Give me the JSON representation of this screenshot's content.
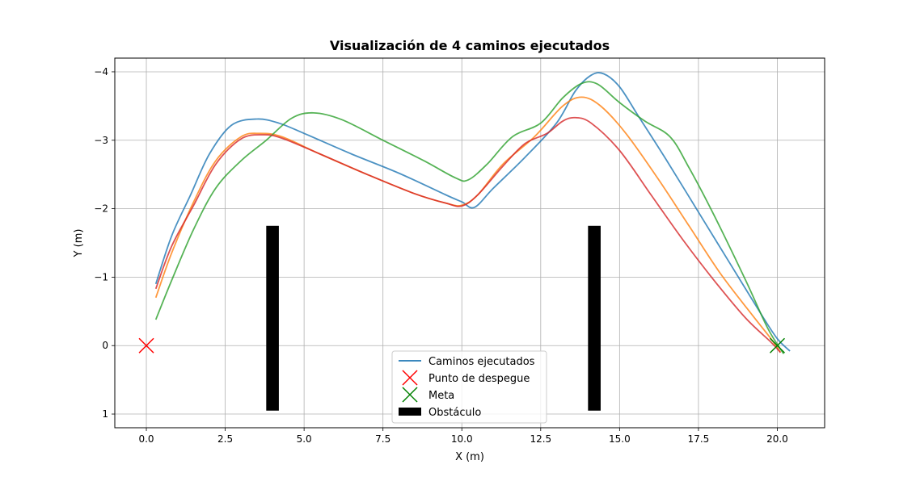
{
  "chart_data": {
    "type": "line",
    "title": "Visualización de 4 caminos ejecutados",
    "xlabel": "X (m)",
    "ylabel": "Y (m)",
    "xlim": [
      -1.0,
      21.5
    ],
    "ylim": [
      1.2,
      -4.2
    ],
    "y_inverted": true,
    "grid": true,
    "legend_position": "lower center",
    "x_ticks": [
      0.0,
      2.5,
      5.0,
      7.5,
      10.0,
      12.5,
      15.0,
      17.5,
      20.0
    ],
    "x_tick_labels": [
      "0.0",
      "2.5",
      "5.0",
      "7.5",
      "10.0",
      "12.5",
      "15.0",
      "17.5",
      "20.0"
    ],
    "y_ticks": [
      -4,
      -3,
      -2,
      -1,
      0,
      1
    ],
    "y_tick_labels": [
      "−4",
      "−3",
      "−2",
      "−1",
      "0",
      "1"
    ],
    "legend": [
      {
        "label": "Caminos ejecutados",
        "kind": "line",
        "color": "#1f77b4"
      },
      {
        "label": "Punto de despegue",
        "kind": "x-marker",
        "color": "#ff0000"
      },
      {
        "label": "Meta",
        "kind": "x-marker",
        "color": "#008000"
      },
      {
        "label": "Obstáculo",
        "kind": "rect",
        "color": "#000000"
      }
    ],
    "series": [
      {
        "color": "#1f77b4",
        "points": [
          [
            0.3,
            -0.9
          ],
          [
            0.8,
            -1.6
          ],
          [
            1.4,
            -2.2
          ],
          [
            2.0,
            -2.8
          ],
          [
            2.7,
            -3.22
          ],
          [
            3.5,
            -3.31
          ],
          [
            4.2,
            -3.25
          ],
          [
            5.0,
            -3.1
          ],
          [
            6.5,
            -2.8
          ],
          [
            8.0,
            -2.52
          ],
          [
            9.5,
            -2.2
          ],
          [
            10.0,
            -2.1
          ],
          [
            10.4,
            -2.02
          ],
          [
            11.0,
            -2.3
          ],
          [
            12.0,
            -2.75
          ],
          [
            13.0,
            -3.25
          ],
          [
            13.6,
            -3.72
          ],
          [
            14.1,
            -3.95
          ],
          [
            14.5,
            -3.97
          ],
          [
            15.0,
            -3.78
          ],
          [
            15.6,
            -3.35
          ],
          [
            16.5,
            -2.7
          ],
          [
            17.5,
            -1.95
          ],
          [
            18.5,
            -1.2
          ],
          [
            19.5,
            -0.45
          ],
          [
            20.0,
            -0.1
          ],
          [
            20.4,
            0.08
          ]
        ]
      },
      {
        "color": "#ff7f0e",
        "points": [
          [
            0.3,
            -0.7
          ],
          [
            0.8,
            -1.35
          ],
          [
            1.5,
            -2.1
          ],
          [
            2.2,
            -2.7
          ],
          [
            3.0,
            -3.05
          ],
          [
            3.6,
            -3.1
          ],
          [
            4.3,
            -3.05
          ],
          [
            5.5,
            -2.8
          ],
          [
            7.0,
            -2.5
          ],
          [
            8.5,
            -2.22
          ],
          [
            9.5,
            -2.08
          ],
          [
            10.0,
            -2.05
          ],
          [
            10.5,
            -2.2
          ],
          [
            11.3,
            -2.65
          ],
          [
            12.3,
            -3.05
          ],
          [
            13.2,
            -3.5
          ],
          [
            13.8,
            -3.63
          ],
          [
            14.4,
            -3.5
          ],
          [
            15.2,
            -3.1
          ],
          [
            16.2,
            -2.45
          ],
          [
            17.2,
            -1.75
          ],
          [
            18.2,
            -1.05
          ],
          [
            19.2,
            -0.45
          ],
          [
            19.8,
            -0.1
          ],
          [
            20.1,
            0.1
          ]
        ]
      },
      {
        "color": "#2ca02c",
        "points": [
          [
            0.3,
            -0.38
          ],
          [
            0.8,
            -0.95
          ],
          [
            1.5,
            -1.7
          ],
          [
            2.2,
            -2.3
          ],
          [
            3.0,
            -2.7
          ],
          [
            3.8,
            -3.0
          ],
          [
            4.6,
            -3.32
          ],
          [
            5.3,
            -3.4
          ],
          [
            6.2,
            -3.3
          ],
          [
            7.5,
            -3.0
          ],
          [
            8.8,
            -2.7
          ],
          [
            9.8,
            -2.45
          ],
          [
            10.2,
            -2.42
          ],
          [
            10.8,
            -2.65
          ],
          [
            11.6,
            -3.05
          ],
          [
            12.5,
            -3.25
          ],
          [
            13.2,
            -3.62
          ],
          [
            13.8,
            -3.83
          ],
          [
            14.3,
            -3.82
          ],
          [
            15.0,
            -3.55
          ],
          [
            15.8,
            -3.28
          ],
          [
            16.6,
            -3.05
          ],
          [
            17.2,
            -2.6
          ],
          [
            18.0,
            -1.9
          ],
          [
            19.0,
            -0.95
          ],
          [
            19.7,
            -0.25
          ],
          [
            20.2,
            0.12
          ]
        ]
      },
      {
        "color": "#d62728",
        "points": [
          [
            0.3,
            -0.83
          ],
          [
            0.8,
            -1.45
          ],
          [
            1.5,
            -2.05
          ],
          [
            2.2,
            -2.65
          ],
          [
            3.0,
            -3.02
          ],
          [
            3.7,
            -3.08
          ],
          [
            4.3,
            -3.03
          ],
          [
            5.5,
            -2.8
          ],
          [
            7.0,
            -2.5
          ],
          [
            8.5,
            -2.22
          ],
          [
            9.5,
            -2.08
          ],
          [
            10.0,
            -2.04
          ],
          [
            10.5,
            -2.2
          ],
          [
            11.3,
            -2.62
          ],
          [
            12.0,
            -2.95
          ],
          [
            12.7,
            -3.1
          ],
          [
            13.2,
            -3.28
          ],
          [
            13.6,
            -3.33
          ],
          [
            14.1,
            -3.25
          ],
          [
            15.0,
            -2.85
          ],
          [
            16.0,
            -2.2
          ],
          [
            17.0,
            -1.55
          ],
          [
            18.0,
            -0.95
          ],
          [
            19.0,
            -0.4
          ],
          [
            19.8,
            -0.05
          ],
          [
            20.1,
            0.1
          ]
        ]
      }
    ],
    "start_point": {
      "x": 0.0,
      "y": 0.0,
      "color": "#ff0000"
    },
    "goal_point": {
      "x": 20.0,
      "y": 0.0,
      "color": "#008000"
    },
    "obstacles": [
      {
        "x_min": 3.8,
        "x_max": 4.2,
        "y_min": -1.75,
        "y_max": 0.95,
        "color": "#000000"
      },
      {
        "x_min": 14.0,
        "x_max": 14.4,
        "y_min": -1.75,
        "y_max": 0.95,
        "color": "#000000"
      }
    ]
  }
}
